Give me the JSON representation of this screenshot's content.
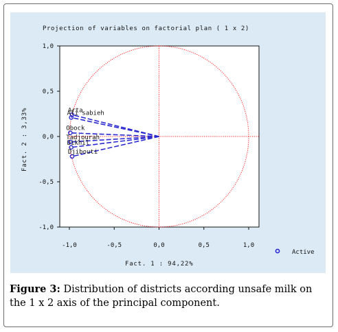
{
  "caption": {
    "label": "Figure 3:",
    "text": "Distribution of districts according unsafe milk on the 1 x 2 axis of the principal component."
  },
  "chart_data": {
    "type": "scatter",
    "title": "Projection of variables on factorial plan ( 1 x 2)",
    "xlabel": "Fact. 1 : 94,22%",
    "ylabel": "Fact. 2 : 3,33%",
    "xlim": [
      -1.0,
      1.0
    ],
    "ylim": [
      -1.0,
      1.0
    ],
    "x_ticks": [
      "-1,0",
      "-0,5",
      "0,0",
      "0,5",
      "1,0"
    ],
    "y_ticks": [
      "1,0",
      "0,5",
      "0,0",
      "-0,5",
      "-1,0"
    ],
    "x_tick_values": [
      -1.0,
      -0.5,
      0.0,
      0.5,
      1.0
    ],
    "y_tick_values": [
      1.0,
      0.5,
      0.0,
      -0.5,
      -1.0
    ],
    "unit_circle": true,
    "legend": {
      "entry": "Active",
      "position": "bottom-right"
    },
    "colors": {
      "circle": "#ff2222",
      "vectors": "#2a2ad0",
      "points": "#2a2ad0",
      "background": "#dbeaf4",
      "frame": "#6b6b6b"
    },
    "points": [
      {
        "label": "Arta",
        "x": -0.97,
        "y": 0.24
      },
      {
        "label": "Ali sabieh",
        "x": -0.98,
        "y": 0.21
      },
      {
        "label": "Obock",
        "x": -0.99,
        "y": 0.04
      },
      {
        "label": "Tadjourah",
        "x": -0.99,
        "y": -0.06
      },
      {
        "label": "Dikhil",
        "x": -0.98,
        "y": -0.12
      },
      {
        "label": "Djibouti",
        "x": -0.97,
        "y": -0.22
      }
    ],
    "point_label_text": [
      "Arta",
      "Ali sabieh",
      "Obock",
      "Tadjourah",
      "Dikhil",
      "Djibouti"
    ]
  }
}
